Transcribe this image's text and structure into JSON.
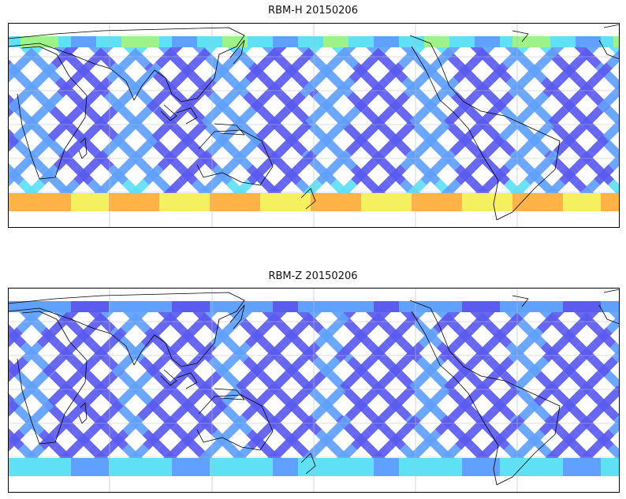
{
  "figure": {
    "panels": [
      {
        "title": "RBM-H 20150206",
        "colormap": "jet",
        "colors": [
          "#5b5bf0",
          "#60a0ff",
          "#5fe0f5",
          "#9ef28a",
          "#f5f060",
          "#ffb347",
          "#e05050"
        ]
      },
      {
        "title": "RBM-Z 20150206",
        "colormap": "jet",
        "colors": [
          "#5b5bf0",
          "#60a0ff",
          "#5fe0f5",
          "#9ef28a",
          "#f5f060"
        ]
      }
    ],
    "projection": "plate-carree",
    "central_longitude": 150,
    "gridlines": true,
    "coastlines": true
  }
}
